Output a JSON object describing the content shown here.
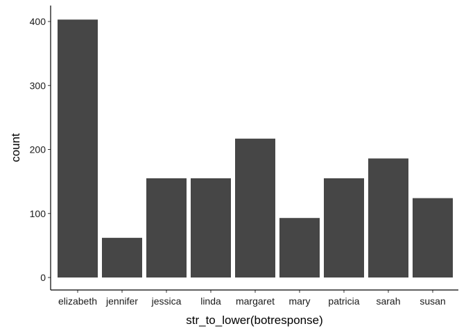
{
  "chart_data": {
    "type": "bar",
    "categories": [
      "elizabeth",
      "jennifer",
      "jessica",
      "linda",
      "margaret",
      "mary",
      "patricia",
      "sarah",
      "susan"
    ],
    "values": [
      403,
      62,
      155,
      155,
      217,
      93,
      155,
      186,
      124
    ],
    "xlabel": "str_to_lower(botresponse)",
    "ylabel": "count",
    "ylim": [
      0,
      420
    ],
    "yticks": [
      0,
      100,
      200,
      300,
      400
    ],
    "grid": false,
    "legend": "none",
    "bar_color": "#464646"
  }
}
